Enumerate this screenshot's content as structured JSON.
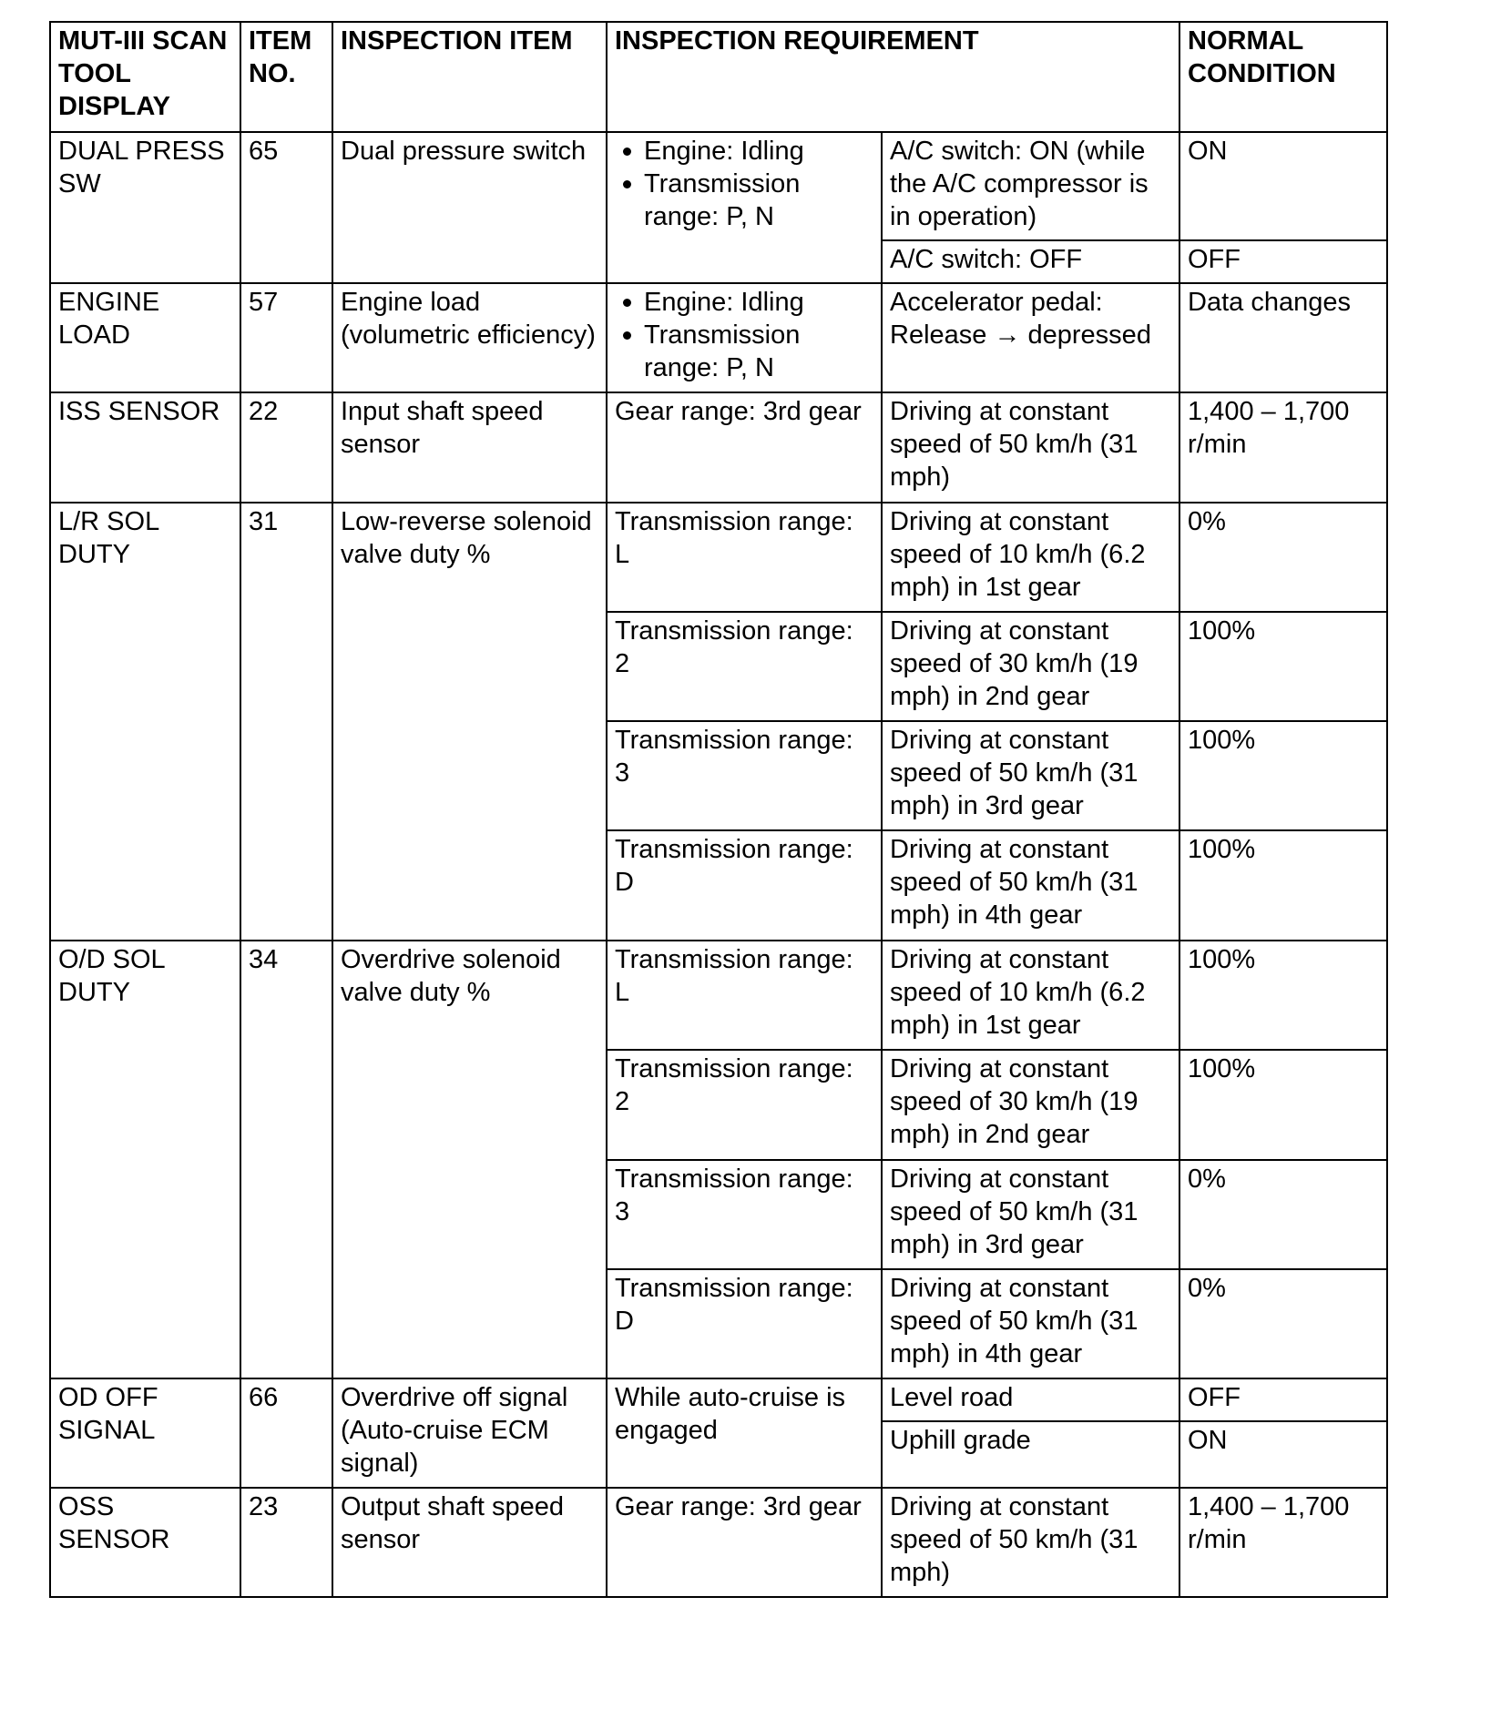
{
  "header": {
    "display": "MUT-III SCAN TOOL DISPLAY",
    "item_no": "ITEM NO.",
    "inspection_item": "INSPECTION ITEM",
    "inspection_requirement": "INSPECTION REQUIREMENT",
    "normal_condition": "NORMAL CONDITION"
  },
  "groups": [
    {
      "display": "DUAL PRESS SW",
      "item_no": "65",
      "inspection_item": "Dual pressure switch",
      "requirement_bullets": [
        "Engine: Idling",
        "Transmission range: P, N"
      ],
      "rows": [
        {
          "condition": "A/C switch: ON (while the A/C compressor is in operation)",
          "normal": "ON"
        },
        {
          "condition": "A/C switch: OFF",
          "normal": "OFF"
        }
      ]
    },
    {
      "display": "ENGINE LOAD",
      "item_no": "57",
      "inspection_item": "Engine load (volumetric efficiency)",
      "requirement_bullets": [
        "Engine: Idling",
        "Transmission range: P, N"
      ],
      "rows": [
        {
          "condition": "Accelerator pedal: Release → depressed",
          "normal": "Data changes"
        }
      ]
    },
    {
      "display": "ISS SENSOR",
      "item_no": "22",
      "inspection_item": "Input shaft speed sensor",
      "requirement": "Gear range: 3rd gear",
      "rows": [
        {
          "condition": "Driving at constant speed of 50 km/h (31 mph)",
          "normal": "1,400 – 1,700 r/min"
        }
      ]
    },
    {
      "display": "L/R SOL DUTY",
      "item_no": "31",
      "inspection_item": "Low-reverse solenoid valve duty %",
      "rows": [
        {
          "requirement": "Transmission range: L",
          "condition": "Driving at constant speed of 10 km/h (6.2 mph) in 1st gear",
          "normal": "0%"
        },
        {
          "requirement": "Transmission range: 2",
          "condition": "Driving at constant speed of 30 km/h (19 mph) in 2nd gear",
          "normal": "100%"
        },
        {
          "requirement": "Transmission range: 3",
          "condition": "Driving at constant speed of 50 km/h (31 mph) in 3rd gear",
          "normal": "100%"
        },
        {
          "requirement": "Transmission range: D",
          "condition": "Driving at constant speed of 50 km/h (31 mph) in 4th gear",
          "normal": "100%"
        }
      ]
    },
    {
      "display": "O/D SOL DUTY",
      "item_no": "34",
      "inspection_item": "Overdrive solenoid valve duty %",
      "rows": [
        {
          "requirement": "Transmission range: L",
          "condition": "Driving at constant speed of 10 km/h (6.2 mph) in 1st gear",
          "normal": "100%"
        },
        {
          "requirement": "Transmission range: 2",
          "condition": "Driving at constant speed of 30 km/h (19 mph) in 2nd gear",
          "normal": "100%"
        },
        {
          "requirement": "Transmission range: 3",
          "condition": "Driving at constant speed of 50 km/h (31 mph) in 3rd gear",
          "normal": "0%"
        },
        {
          "requirement": "Transmission range: D",
          "condition": "Driving at constant speed of 50 km/h (31 mph) in 4th gear",
          "normal": "0%"
        }
      ]
    },
    {
      "display": "OD OFF SIGNAL",
      "item_no": "66",
      "inspection_item": "Overdrive off signal (Auto-cruise ECM signal)",
      "requirement": "While auto-cruise is engaged",
      "rows": [
        {
          "condition": "Level road",
          "normal": "OFF"
        },
        {
          "condition": "Uphill grade",
          "normal": "ON"
        }
      ]
    },
    {
      "display": "OSS SENSOR",
      "item_no": "23",
      "inspection_item": "Output shaft speed sensor",
      "requirement": "Gear range: 3rd gear",
      "rows": [
        {
          "condition": "Driving at constant speed of 50 km/h (31 mph)",
          "normal": "1,400 – 1,700 r/min"
        }
      ]
    }
  ]
}
